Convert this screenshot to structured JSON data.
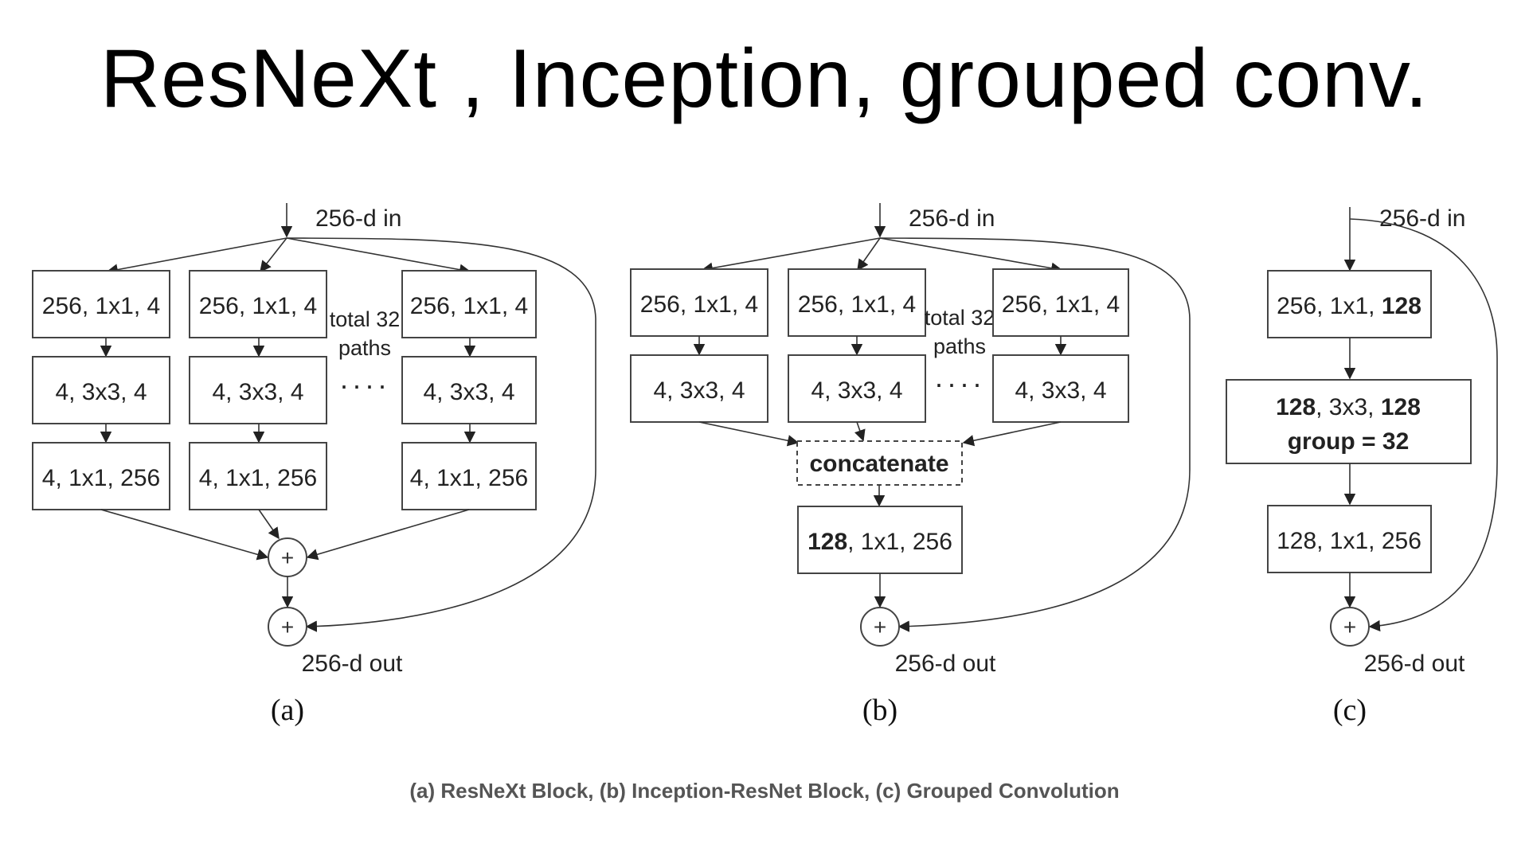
{
  "title": "ResNeXt ,  Inception, grouped conv.",
  "caption": "(a) ResNeXt Block, (b) Inception-ResNet Block, (c) Grouped Convolution",
  "panel_a": {
    "input": "256-d in",
    "output": "256-d out",
    "label": "(a)",
    "paths_note": [
      "total 32",
      "paths"
    ],
    "dots": "····",
    "row1": "256, 1x1, 4",
    "row2": "4, 3x3, 4",
    "row3": "4, 1x1, 256",
    "plus": "+"
  },
  "panel_b": {
    "input": "256-d in",
    "output": "256-d out",
    "label": "(b)",
    "paths_note": [
      "total 32",
      "paths"
    ],
    "dots": "····",
    "row1": "256, 1x1, 4",
    "row2": "4, 3x3, 4",
    "concat": "concatenate",
    "final_bold": "128",
    "final_rest": ", 1x1, 256",
    "plus": "+"
  },
  "panel_c": {
    "input": "256-d in",
    "output": "256-d out",
    "label": "(c)",
    "box1_rest": "256, 1x1, ",
    "box1_bold": "128",
    "box2_bold_a": "128",
    "box2_mid": ", 3x3, ",
    "box2_bold_b": "128",
    "box2_line2": "group = 32",
    "box3": "128, 1x1, 256",
    "plus": "+"
  }
}
